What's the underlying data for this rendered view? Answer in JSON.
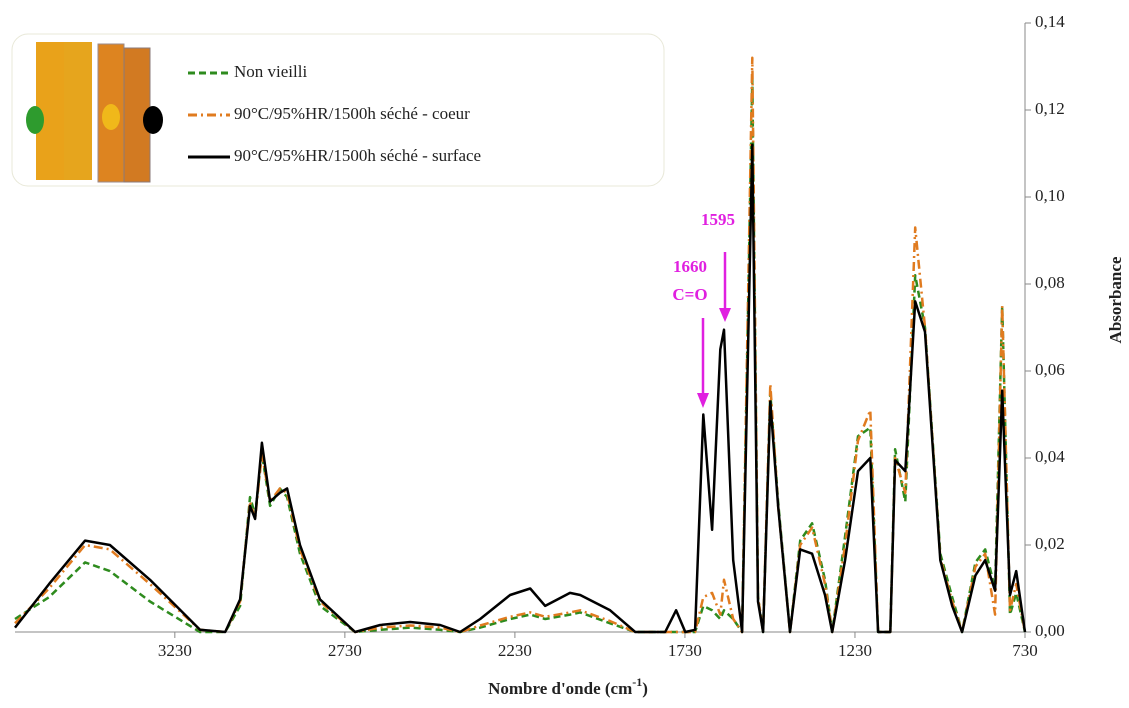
{
  "chart_data": {
    "type": "line",
    "xlabel": [
      "Nombre d'onde (cm",
      "-1",
      ")"
    ],
    "ylabel": "Absorbance",
    "xlim": [
      3700,
      730
    ],
    "xticks": [
      3230,
      2730,
      2230,
      1730,
      1230,
      730
    ],
    "ylim": [
      0,
      0.14
    ],
    "yticks": [
      {
        "value": 0,
        "label": "0,00"
      },
      {
        "value": 0.02,
        "label": "0,02"
      },
      {
        "value": 0.04,
        "label": "0,04"
      },
      {
        "value": 0.06,
        "label": "0,06"
      },
      {
        "value": 0.08,
        "label": "0,08"
      },
      {
        "value": 0.1,
        "label": "0,10"
      },
      {
        "value": 0.12,
        "label": "0,12"
      },
      {
        "value": 0.14,
        "label": "0,14"
      }
    ],
    "y_axis_side": "right",
    "legend": "upper left",
    "annotations": [
      "1595",
      "1660",
      "C=O"
    ],
    "x": [
      3700,
      3600,
      3494,
      3421,
      3303,
      3156,
      3082,
      3038,
      3009,
      2994,
      2974,
      2950,
      2921,
      2900,
      2862,
      2803,
      2700,
      2626,
      2538,
      2450,
      2391,
      2332,
      2244,
      2185,
      2141,
      2068,
      2038,
      1950,
      1876,
      1788,
      1756,
      1729,
      1700,
      1676,
      1650,
      1626,
      1615,
      1588,
      1562,
      1532,
      1515,
      1500,
      1479,
      1456,
      1421,
      1391,
      1356,
      1318,
      1297,
      1259,
      1221,
      1185,
      1162,
      1126,
      1112,
      1082,
      1053,
      1024,
      979,
      944,
      915,
      876,
      847,
      818,
      797,
      774,
      756,
      730
    ],
    "series": [
      {
        "name": "Non vieilli",
        "color": "#2e8b1e",
        "dash": "dashed",
        "values": [
          0.003,
          0.008,
          0.016,
          0.014,
          0.007,
          0,
          0,
          0.006,
          0.031,
          0.027,
          0.041,
          0.029,
          0.033,
          0.031,
          0.018,
          0.006,
          0,
          0.0005,
          0.001,
          0.0005,
          0,
          0.001,
          0.003,
          0.004,
          0.003,
          0.004,
          0.0045,
          0.002,
          0,
          0,
          0,
          0,
          0,
          0.006,
          0.005,
          0.003,
          0.005,
          0.003,
          0,
          0.127,
          0.008,
          0,
          0.055,
          0.03,
          0,
          0.021,
          0.025,
          0.012,
          0,
          0.022,
          0.045,
          0.047,
          0,
          0,
          0.042,
          0.03,
          0.082,
          0.07,
          0.018,
          0.008,
          0,
          0.016,
          0.019,
          0.01,
          0.075,
          0.004,
          0.009,
          0
        ]
      },
      {
        "name": "90°C/95%HR/1500h séché - coeur",
        "color": "#e07b1f",
        "dash": "dashdot",
        "values": [
          0.002,
          0.01,
          0.02,
          0.019,
          0.011,
          0.0005,
          0,
          0.007,
          0.03,
          0.026,
          0.041,
          0.03,
          0.033,
          0.032,
          0.019,
          0.007,
          0,
          0.001,
          0.0015,
          0.001,
          0,
          0.0015,
          0.0035,
          0.0045,
          0.0035,
          0.0045,
          0.005,
          0.0025,
          0,
          0,
          0,
          0,
          0,
          0.008,
          0.009,
          0.004,
          0.012,
          0.003,
          0,
          0.132,
          0.008,
          0,
          0.057,
          0.029,
          0,
          0.02,
          0.024,
          0.011,
          0,
          0.02,
          0.044,
          0.051,
          0,
          0,
          0.04,
          0.032,
          0.093,
          0.07,
          0.017,
          0.007,
          0,
          0.015,
          0.018,
          0.004,
          0.075,
          0.005,
          0.011,
          0
        ]
      },
      {
        "name": "90°C/95%HR/1500h séché - surface",
        "color": "#000000",
        "dash": "solid",
        "values": [
          0.001,
          0.011,
          0.021,
          0.02,
          0.012,
          0.0005,
          0,
          0.0075,
          0.029,
          0.026,
          0.0435,
          0.03,
          0.032,
          0.033,
          0.02,
          0.0075,
          0,
          0.0016,
          0.0023,
          0.0016,
          0,
          0.003,
          0.0085,
          0.01,
          0.006,
          0.009,
          0.0085,
          0.005,
          0,
          0,
          0.005,
          0,
          0.0005,
          0.05,
          0.0235,
          0.065,
          0.0695,
          0.0165,
          0,
          0.112,
          0.007,
          0,
          0.053,
          0.029,
          0,
          0.019,
          0.018,
          0.0085,
          0,
          0.0165,
          0.037,
          0.04,
          0,
          0,
          0.0395,
          0.037,
          0.076,
          0.069,
          0.0165,
          0.006,
          0,
          0.013,
          0.0165,
          0.0095,
          0.0555,
          0.0085,
          0.014,
          0
        ]
      }
    ]
  }
}
